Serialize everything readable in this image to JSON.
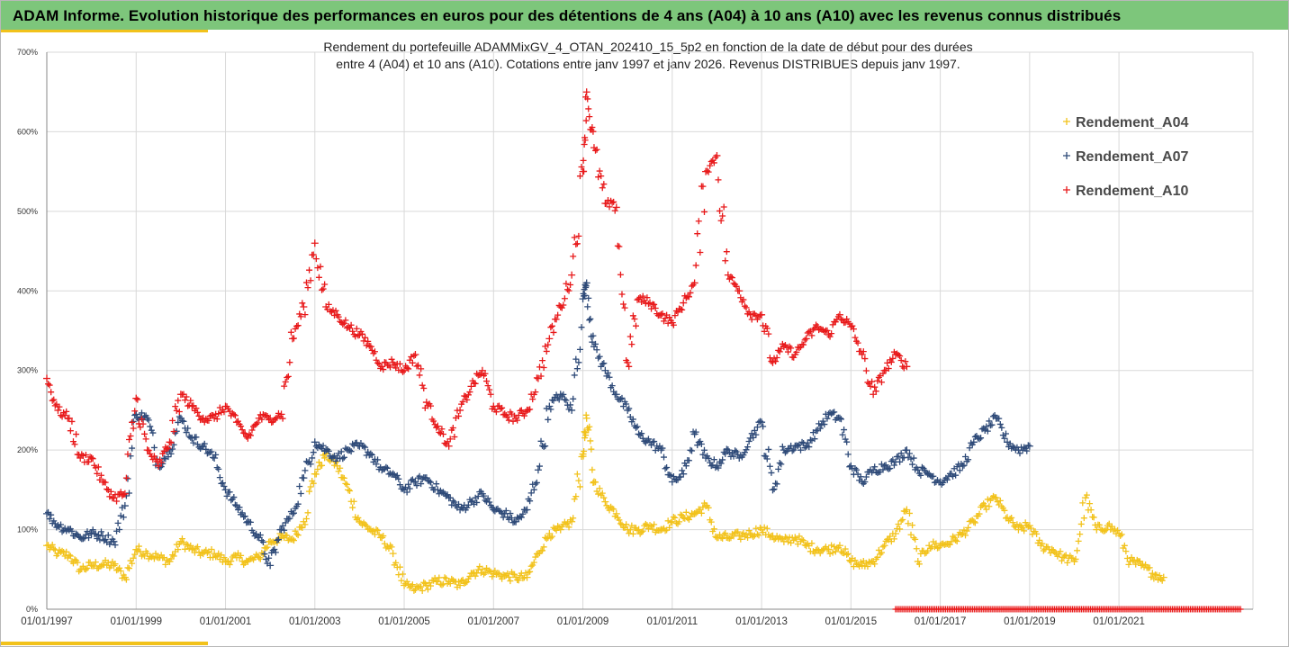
{
  "header": {
    "title": "ADAM Informe. Evolution historique des performances en euros pour des détentions de 4 ans (A04) à 10 ans (A10) avec les revenus connus distribués"
  },
  "colors": {
    "header_bg": "#7dc67b",
    "accent": "#f2c21b",
    "A04": "#f2c21b",
    "A07": "#2e4a78",
    "A10": "#e8191a",
    "grid": "#d9d9d9"
  },
  "chart_data": {
    "type": "scatter",
    "title_line1": "Rendement du portefeuille ADAMMixGV_4_OTAN_202410_15_5p2  en fonction de la date de début pour des durées",
    "title_line2": "entre 4 (A04) et 10 ans (A10). Cotations entre janv 1997 et janv 2026. Revenus DISTRIBUES depuis janv 1997.",
    "xlim": [
      "01/01/1997",
      "01/01/2024"
    ],
    "ylim": [
      0,
      700
    ],
    "y_ticks": [
      "0%",
      "100%",
      "200%",
      "300%",
      "400%",
      "500%",
      "600%",
      "700%"
    ],
    "x_ticks": [
      "01/01/1997",
      "01/01/1999",
      "01/01/2001",
      "01/01/2003",
      "01/01/2005",
      "01/01/2007",
      "01/01/2009",
      "01/01/2011",
      "01/01/2013",
      "01/01/2015",
      "01/01/2017",
      "01/01/2019",
      "01/01/2021"
    ],
    "legend_position": "right",
    "grid": true,
    "series": [
      {
        "name": "Rendement_A04",
        "color": "#f2c21b",
        "marker": "+",
        "points": [
          [
            "1997-01",
            80
          ],
          [
            "1997-04",
            70
          ],
          [
            "1997-07",
            68
          ],
          [
            "1997-10",
            50
          ],
          [
            "1998-01",
            55
          ],
          [
            "1998-04",
            56
          ],
          [
            "1998-07",
            55
          ],
          [
            "1998-10",
            40
          ],
          [
            "1999-01",
            75
          ],
          [
            "1999-04",
            70
          ],
          [
            "1999-07",
            65
          ],
          [
            "1999-10",
            60
          ],
          [
            "2000-01",
            85
          ],
          [
            "2000-04",
            75
          ],
          [
            "2000-07",
            70
          ],
          [
            "2000-10",
            70
          ],
          [
            "2001-01",
            60
          ],
          [
            "2001-04",
            65
          ],
          [
            "2001-07",
            60
          ],
          [
            "2001-10",
            65
          ],
          [
            "2002-01",
            85
          ],
          [
            "2002-04",
            90
          ],
          [
            "2002-07",
            88
          ],
          [
            "2002-10",
            110
          ],
          [
            "2003-01",
            170
          ],
          [
            "2003-04",
            195
          ],
          [
            "2003-07",
            180
          ],
          [
            "2003-10",
            150
          ],
          [
            "2004-01",
            110
          ],
          [
            "2004-04",
            100
          ],
          [
            "2004-07",
            90
          ],
          [
            "2004-10",
            70
          ],
          [
            "2005-01",
            30
          ],
          [
            "2005-04",
            25
          ],
          [
            "2005-07",
            30
          ],
          [
            "2005-10",
            35
          ],
          [
            "2006-01",
            35
          ],
          [
            "2006-04",
            30
          ],
          [
            "2006-07",
            45
          ],
          [
            "2006-10",
            50
          ],
          [
            "2007-01",
            45
          ],
          [
            "2007-04",
            42
          ],
          [
            "2007-07",
            40
          ],
          [
            "2007-10",
            40
          ],
          [
            "2008-01",
            70
          ],
          [
            "2008-04",
            95
          ],
          [
            "2008-07",
            100
          ],
          [
            "2008-10",
            110
          ],
          [
            "2009-01",
            195
          ],
          [
            "2009-02",
            240
          ],
          [
            "2009-04",
            160
          ],
          [
            "2009-07",
            135
          ],
          [
            "2009-10",
            120
          ],
          [
            "2010-01",
            100
          ],
          [
            "2010-04",
            100
          ],
          [
            "2010-07",
            105
          ],
          [
            "2010-10",
            100
          ],
          [
            "2011-01",
            110
          ],
          [
            "2011-04",
            115
          ],
          [
            "2011-07",
            120
          ],
          [
            "2011-10",
            130
          ],
          [
            "2012-01",
            90
          ],
          [
            "2012-04",
            90
          ],
          [
            "2012-07",
            92
          ],
          [
            "2012-10",
            95
          ],
          [
            "2013-01",
            100
          ],
          [
            "2013-04",
            92
          ],
          [
            "2013-07",
            85
          ],
          [
            "2013-10",
            90
          ],
          [
            "2014-01",
            80
          ],
          [
            "2014-04",
            75
          ],
          [
            "2014-07",
            75
          ],
          [
            "2014-10",
            80
          ],
          [
            "2015-01",
            60
          ],
          [
            "2015-04",
            55
          ],
          [
            "2015-07",
            60
          ],
          [
            "2015-10",
            80
          ],
          [
            "2016-01",
            95
          ],
          [
            "2016-04",
            125
          ],
          [
            "2016-07",
            60
          ],
          [
            "2016-10",
            80
          ],
          [
            "2017-01",
            80
          ],
          [
            "2017-04",
            85
          ],
          [
            "2017-07",
            95
          ],
          [
            "2017-10",
            110
          ],
          [
            "2018-01",
            130
          ],
          [
            "2018-04",
            140
          ],
          [
            "2018-07",
            115
          ],
          [
            "2018-10",
            100
          ],
          [
            "2019-01",
            105
          ],
          [
            "2019-04",
            80
          ],
          [
            "2019-07",
            75
          ],
          [
            "2019-10",
            65
          ],
          [
            "2020-01",
            60
          ],
          [
            "2020-04",
            140
          ],
          [
            "2020-07",
            100
          ],
          [
            "2020-10",
            105
          ],
          [
            "2021-01",
            95
          ],
          [
            "2021-04",
            60
          ],
          [
            "2021-07",
            55
          ],
          [
            "2021-10",
            45
          ],
          [
            "2022-01",
            40
          ]
        ]
      },
      {
        "name": "Rendement_A07",
        "color": "#2e4a78",
        "marker": "+",
        "points": [
          [
            "1997-01",
            120
          ],
          [
            "1997-04",
            105
          ],
          [
            "1997-07",
            100
          ],
          [
            "1997-10",
            90
          ],
          [
            "1998-01",
            95
          ],
          [
            "1998-04",
            92
          ],
          [
            "1998-07",
            85
          ],
          [
            "1998-10",
            130
          ],
          [
            "1999-01",
            245
          ],
          [
            "1999-04",
            240
          ],
          [
            "1999-07",
            180
          ],
          [
            "1999-10",
            200
          ],
          [
            "2000-01",
            240
          ],
          [
            "2000-04",
            215
          ],
          [
            "2000-07",
            205
          ],
          [
            "2000-10",
            190
          ],
          [
            "2001-01",
            150
          ],
          [
            "2001-04",
            130
          ],
          [
            "2001-07",
            110
          ],
          [
            "2001-10",
            90
          ],
          [
            "2002-01",
            55
          ],
          [
            "2002-04",
            100
          ],
          [
            "2002-07",
            120
          ],
          [
            "2002-10",
            165
          ],
          [
            "2003-01",
            210
          ],
          [
            "2003-04",
            200
          ],
          [
            "2003-07",
            190
          ],
          [
            "2003-10",
            200
          ],
          [
            "2004-01",
            205
          ],
          [
            "2004-04",
            195
          ],
          [
            "2004-07",
            175
          ],
          [
            "2004-10",
            170
          ],
          [
            "2005-01",
            150
          ],
          [
            "2005-04",
            160
          ],
          [
            "2005-07",
            165
          ],
          [
            "2005-10",
            150
          ],
          [
            "2006-01",
            140
          ],
          [
            "2006-04",
            125
          ],
          [
            "2006-07",
            135
          ],
          [
            "2006-10",
            145
          ],
          [
            "2007-01",
            125
          ],
          [
            "2007-04",
            120
          ],
          [
            "2007-07",
            110
          ],
          [
            "2007-10",
            125
          ],
          [
            "2008-01",
            175
          ],
          [
            "2008-04",
            255
          ],
          [
            "2008-07",
            270
          ],
          [
            "2008-10",
            250
          ],
          [
            "2009-01",
            390
          ],
          [
            "2009-02",
            410
          ],
          [
            "2009-04",
            330
          ],
          [
            "2009-07",
            300
          ],
          [
            "2009-10",
            270
          ],
          [
            "2010-01",
            250
          ],
          [
            "2010-04",
            220
          ],
          [
            "2010-07",
            210
          ],
          [
            "2010-10",
            200
          ],
          [
            "2011-01",
            160
          ],
          [
            "2011-04",
            170
          ],
          [
            "2011-07",
            220
          ],
          [
            "2011-10",
            190
          ],
          [
            "2012-01",
            180
          ],
          [
            "2012-04",
            200
          ],
          [
            "2012-07",
            190
          ],
          [
            "2012-10",
            215
          ],
          [
            "2013-01",
            235
          ],
          [
            "2013-04",
            150
          ],
          [
            "2013-07",
            200
          ],
          [
            "2013-10",
            205
          ],
          [
            "2014-01",
            205
          ],
          [
            "2014-04",
            225
          ],
          [
            "2014-07",
            245
          ],
          [
            "2014-10",
            240
          ],
          [
            "2015-01",
            180
          ],
          [
            "2015-04",
            160
          ],
          [
            "2015-07",
            175
          ],
          [
            "2015-10",
            180
          ],
          [
            "2016-01",
            185
          ],
          [
            "2016-04",
            200
          ],
          [
            "2016-07",
            175
          ],
          [
            "2016-10",
            170
          ],
          [
            "2017-01",
            160
          ],
          [
            "2017-04",
            170
          ],
          [
            "2017-07",
            180
          ],
          [
            "2017-10",
            210
          ],
          [
            "2018-01",
            225
          ],
          [
            "2018-04",
            240
          ],
          [
            "2018-07",
            210
          ],
          [
            "2018-10",
            200
          ],
          [
            "2019-01",
            205
          ]
        ]
      },
      {
        "name": "Rendement_A10",
        "color": "#e8191a",
        "marker": "+",
        "points": [
          [
            "1997-01",
            290
          ],
          [
            "1997-04",
            250
          ],
          [
            "1997-07",
            240
          ],
          [
            "1997-10",
            190
          ],
          [
            "1998-01",
            190
          ],
          [
            "1998-04",
            160
          ],
          [
            "1998-07",
            140
          ],
          [
            "1998-10",
            145
          ],
          [
            "1999-01",
            265
          ],
          [
            "1999-04",
            200
          ],
          [
            "1999-07",
            180
          ],
          [
            "1999-10",
            210
          ],
          [
            "2000-01",
            270
          ],
          [
            "2000-04",
            255
          ],
          [
            "2000-07",
            240
          ],
          [
            "2000-10",
            240
          ],
          [
            "2001-01",
            255
          ],
          [
            "2001-04",
            235
          ],
          [
            "2001-07",
            215
          ],
          [
            "2001-10",
            240
          ],
          [
            "2002-01",
            240
          ],
          [
            "2002-04",
            245
          ],
          [
            "2002-07",
            340
          ],
          [
            "2002-10",
            380
          ],
          [
            "2003-01",
            460
          ],
          [
            "2003-04",
            380
          ],
          [
            "2003-07",
            370
          ],
          [
            "2003-10",
            355
          ],
          [
            "2004-01",
            345
          ],
          [
            "2004-04",
            330
          ],
          [
            "2004-07",
            305
          ],
          [
            "2004-10",
            310
          ],
          [
            "2005-01",
            300
          ],
          [
            "2005-04",
            320
          ],
          [
            "2005-07",
            260
          ],
          [
            "2005-10",
            230
          ],
          [
            "2006-01",
            205
          ],
          [
            "2006-04",
            250
          ],
          [
            "2006-07",
            280
          ],
          [
            "2006-10",
            300
          ],
          [
            "2007-01",
            255
          ],
          [
            "2007-04",
            245
          ],
          [
            "2007-07",
            240
          ],
          [
            "2007-10",
            250
          ],
          [
            "2008-01",
            290
          ],
          [
            "2008-04",
            340
          ],
          [
            "2008-07",
            380
          ],
          [
            "2008-10",
            420
          ],
          [
            "2009-01",
            550
          ],
          [
            "2009-02",
            650
          ],
          [
            "2009-04",
            580
          ],
          [
            "2009-07",
            510
          ],
          [
            "2009-10",
            505
          ],
          [
            "2010-01",
            310
          ],
          [
            "2010-04",
            390
          ],
          [
            "2010-07",
            385
          ],
          [
            "2010-10",
            370
          ],
          [
            "2011-01",
            360
          ],
          [
            "2011-04",
            385
          ],
          [
            "2011-07",
            410
          ],
          [
            "2011-10",
            550
          ],
          [
            "2012-01",
            570
          ],
          [
            "2012-04",
            420
          ],
          [
            "2012-07",
            400
          ],
          [
            "2012-10",
            370
          ],
          [
            "2013-01",
            370
          ],
          [
            "2013-04",
            310
          ],
          [
            "2013-07",
            330
          ],
          [
            "2013-10",
            320
          ],
          [
            "2014-01",
            340
          ],
          [
            "2014-04",
            355
          ],
          [
            "2014-07",
            345
          ],
          [
            "2014-10",
            370
          ],
          [
            "2015-01",
            355
          ],
          [
            "2015-04",
            320
          ],
          [
            "2015-07",
            270
          ],
          [
            "2015-10",
            300
          ],
          [
            "2016-01",
            320
          ],
          [
            "2016-04",
            305
          ]
        ]
      }
    ],
    "zero_band": {
      "series": "Rendement_A10",
      "from": "2016-01",
      "to": "2023-10",
      "value": 0
    }
  }
}
